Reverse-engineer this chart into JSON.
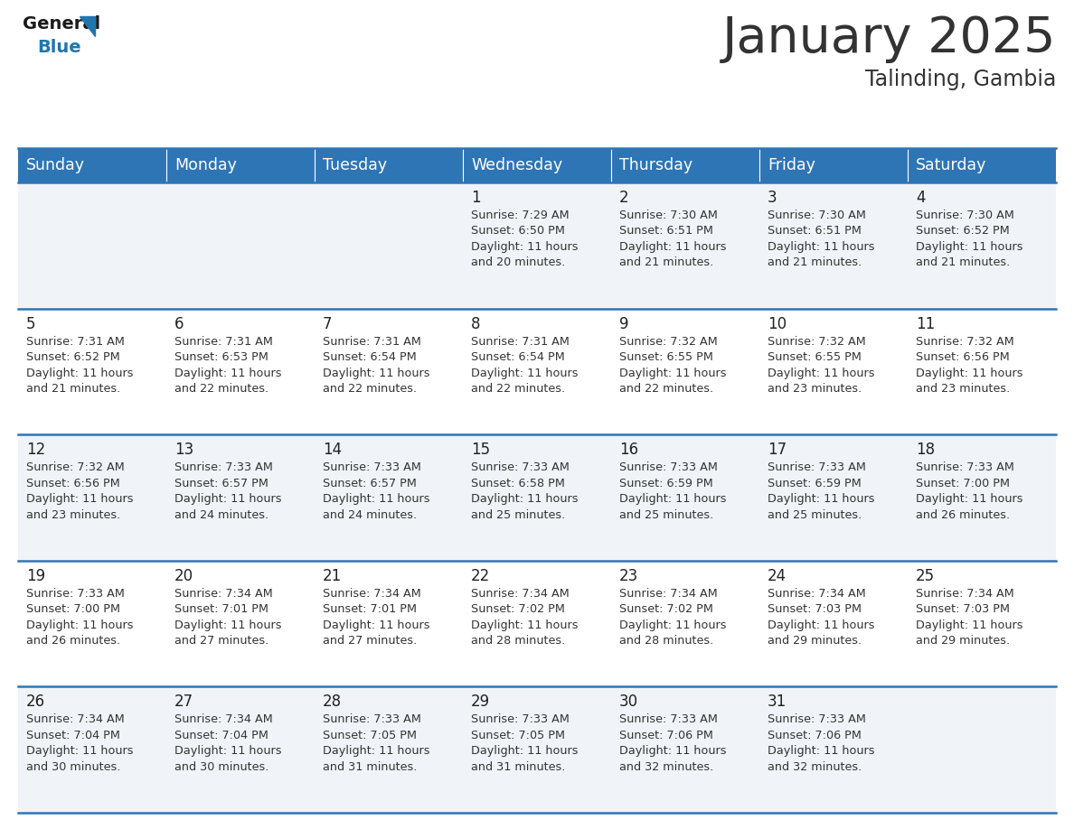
{
  "title": "January 2025",
  "subtitle": "Talinding, Gambia",
  "header_color": "#2E75B6",
  "header_text_color": "#FFFFFF",
  "days_of_week": [
    "Sunday",
    "Monday",
    "Tuesday",
    "Wednesday",
    "Thursday",
    "Friday",
    "Saturday"
  ],
  "cell_bg_even": "#F0F4F8",
  "cell_bg_odd": "#FFFFFF",
  "border_color": "#2E75B6",
  "text_color": "#333333",
  "day_num_color": "#222222",
  "calendar": [
    [
      {
        "day": null,
        "sunrise": null,
        "sunset": null,
        "daylight": null
      },
      {
        "day": null,
        "sunrise": null,
        "sunset": null,
        "daylight": null
      },
      {
        "day": null,
        "sunrise": null,
        "sunset": null,
        "daylight": null
      },
      {
        "day": 1,
        "sunrise": "7:29 AM",
        "sunset": "6:50 PM",
        "daylight": "11 hours\nand 20 minutes."
      },
      {
        "day": 2,
        "sunrise": "7:30 AM",
        "sunset": "6:51 PM",
        "daylight": "11 hours\nand 21 minutes."
      },
      {
        "day": 3,
        "sunrise": "7:30 AM",
        "sunset": "6:51 PM",
        "daylight": "11 hours\nand 21 minutes."
      },
      {
        "day": 4,
        "sunrise": "7:30 AM",
        "sunset": "6:52 PM",
        "daylight": "11 hours\nand 21 minutes."
      }
    ],
    [
      {
        "day": 5,
        "sunrise": "7:31 AM",
        "sunset": "6:52 PM",
        "daylight": "11 hours\nand 21 minutes."
      },
      {
        "day": 6,
        "sunrise": "7:31 AM",
        "sunset": "6:53 PM",
        "daylight": "11 hours\nand 22 minutes."
      },
      {
        "day": 7,
        "sunrise": "7:31 AM",
        "sunset": "6:54 PM",
        "daylight": "11 hours\nand 22 minutes."
      },
      {
        "day": 8,
        "sunrise": "7:31 AM",
        "sunset": "6:54 PM",
        "daylight": "11 hours\nand 22 minutes."
      },
      {
        "day": 9,
        "sunrise": "7:32 AM",
        "sunset": "6:55 PM",
        "daylight": "11 hours\nand 22 minutes."
      },
      {
        "day": 10,
        "sunrise": "7:32 AM",
        "sunset": "6:55 PM",
        "daylight": "11 hours\nand 23 minutes."
      },
      {
        "day": 11,
        "sunrise": "7:32 AM",
        "sunset": "6:56 PM",
        "daylight": "11 hours\nand 23 minutes."
      }
    ],
    [
      {
        "day": 12,
        "sunrise": "7:32 AM",
        "sunset": "6:56 PM",
        "daylight": "11 hours\nand 23 minutes."
      },
      {
        "day": 13,
        "sunrise": "7:33 AM",
        "sunset": "6:57 PM",
        "daylight": "11 hours\nand 24 minutes."
      },
      {
        "day": 14,
        "sunrise": "7:33 AM",
        "sunset": "6:57 PM",
        "daylight": "11 hours\nand 24 minutes."
      },
      {
        "day": 15,
        "sunrise": "7:33 AM",
        "sunset": "6:58 PM",
        "daylight": "11 hours\nand 25 minutes."
      },
      {
        "day": 16,
        "sunrise": "7:33 AM",
        "sunset": "6:59 PM",
        "daylight": "11 hours\nand 25 minutes."
      },
      {
        "day": 17,
        "sunrise": "7:33 AM",
        "sunset": "6:59 PM",
        "daylight": "11 hours\nand 25 minutes."
      },
      {
        "day": 18,
        "sunrise": "7:33 AM",
        "sunset": "7:00 PM",
        "daylight": "11 hours\nand 26 minutes."
      }
    ],
    [
      {
        "day": 19,
        "sunrise": "7:33 AM",
        "sunset": "7:00 PM",
        "daylight": "11 hours\nand 26 minutes."
      },
      {
        "day": 20,
        "sunrise": "7:34 AM",
        "sunset": "7:01 PM",
        "daylight": "11 hours\nand 27 minutes."
      },
      {
        "day": 21,
        "sunrise": "7:34 AM",
        "sunset": "7:01 PM",
        "daylight": "11 hours\nand 27 minutes."
      },
      {
        "day": 22,
        "sunrise": "7:34 AM",
        "sunset": "7:02 PM",
        "daylight": "11 hours\nand 28 minutes."
      },
      {
        "day": 23,
        "sunrise": "7:34 AM",
        "sunset": "7:02 PM",
        "daylight": "11 hours\nand 28 minutes."
      },
      {
        "day": 24,
        "sunrise": "7:34 AM",
        "sunset": "7:03 PM",
        "daylight": "11 hours\nand 29 minutes."
      },
      {
        "day": 25,
        "sunrise": "7:34 AM",
        "sunset": "7:03 PM",
        "daylight": "11 hours\nand 29 minutes."
      }
    ],
    [
      {
        "day": 26,
        "sunrise": "7:34 AM",
        "sunset": "7:04 PM",
        "daylight": "11 hours\nand 30 minutes."
      },
      {
        "day": 27,
        "sunrise": "7:34 AM",
        "sunset": "7:04 PM",
        "daylight": "11 hours\nand 30 minutes."
      },
      {
        "day": 28,
        "sunrise": "7:33 AM",
        "sunset": "7:05 PM",
        "daylight": "11 hours\nand 31 minutes."
      },
      {
        "day": 29,
        "sunrise": "7:33 AM",
        "sunset": "7:05 PM",
        "daylight": "11 hours\nand 31 minutes."
      },
      {
        "day": 30,
        "sunrise": "7:33 AM",
        "sunset": "7:06 PM",
        "daylight": "11 hours\nand 32 minutes."
      },
      {
        "day": 31,
        "sunrise": "7:33 AM",
        "sunset": "7:06 PM",
        "daylight": "11 hours\nand 32 minutes."
      },
      {
        "day": null,
        "sunrise": null,
        "sunset": null,
        "daylight": null
      }
    ]
  ],
  "logo_general_color": "#1a1a1a",
  "logo_blue_color": "#2176AE",
  "title_fontsize": 40,
  "subtitle_fontsize": 17,
  "header_fontsize": 12.5,
  "day_num_fontsize": 12,
  "cell_text_fontsize": 9.2
}
